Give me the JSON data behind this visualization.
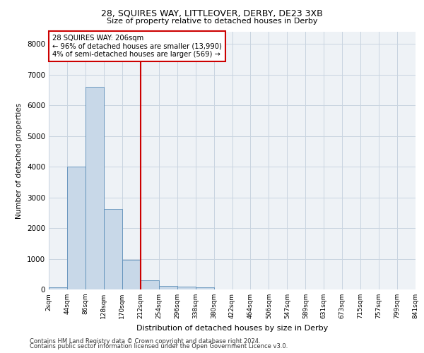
{
  "title": "28, SQUIRES WAY, LITTLEOVER, DERBY, DE23 3XB",
  "subtitle": "Size of property relative to detached houses in Derby",
  "xlabel": "Distribution of detached houses by size in Derby",
  "ylabel": "Number of detached properties",
  "bar_values": [
    70,
    4000,
    6600,
    2620,
    960,
    310,
    120,
    100,
    80,
    0,
    0,
    0,
    0,
    0,
    0,
    0,
    0,
    0,
    0,
    0
  ],
  "bin_labels": [
    "2sqm",
    "44sqm",
    "86sqm",
    "128sqm",
    "170sqm",
    "212sqm",
    "254sqm",
    "296sqm",
    "338sqm",
    "380sqm",
    "422sqm",
    "464sqm",
    "506sqm",
    "547sqm",
    "589sqm",
    "631sqm",
    "673sqm",
    "715sqm",
    "757sqm",
    "799sqm",
    "841sqm"
  ],
  "bar_color": "#c8d8e8",
  "bar_edge_color": "#5b8db8",
  "vline_color": "#cc0000",
  "vline_x_index": 5,
  "annotation_line1": "28 SQUIRES WAY: 206sqm",
  "annotation_line2": "← 96% of detached houses are smaller (13,990)",
  "annotation_line3": "4% of semi-detached houses are larger (569) →",
  "annotation_box_color": "#cc0000",
  "ylim": [
    0,
    8400
  ],
  "yticks": [
    0,
    1000,
    2000,
    3000,
    4000,
    5000,
    6000,
    7000,
    8000
  ],
  "grid_color": "#c8d4e0",
  "bg_color": "#eef2f6",
  "footnote1": "Contains HM Land Registry data © Crown copyright and database right 2024.",
  "footnote2": "Contains public sector information licensed under the Open Government Licence v3.0."
}
